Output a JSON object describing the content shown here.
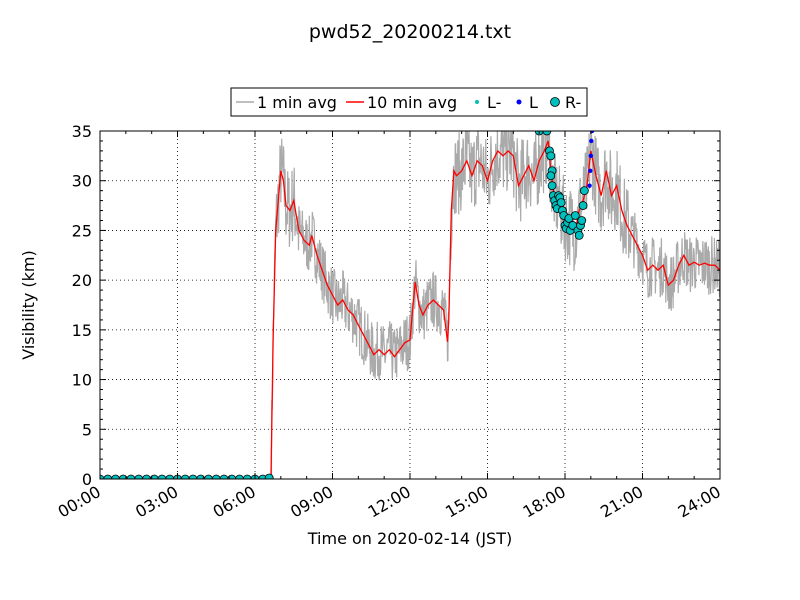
{
  "chart_data": {
    "type": "line",
    "title": "pwd52_20200214.txt",
    "xlabel": "Time on 2020-02-14 (JST)",
    "ylabel": "Visibility (km)",
    "xlim": [
      0,
      24
    ],
    "ylim": [
      0,
      35
    ],
    "x_ticks": [
      "00:00",
      "03:00",
      "06:00",
      "09:00",
      "12:00",
      "15:00",
      "18:00",
      "21:00",
      "24:00"
    ],
    "y_ticks": [
      0,
      5,
      10,
      15,
      20,
      25,
      30,
      35
    ],
    "grid": true,
    "legend_position": "top-center",
    "legend": [
      "1 min avg",
      "10 min avg",
      "L-",
      "L",
      "R-"
    ],
    "colors": {
      "one_min": "#aaaaaa",
      "ten_min": "#ff0000",
      "l_minus": "#00bfbf",
      "l": "#0000ff",
      "r_minus": "#00bfbf"
    },
    "series": [
      {
        "name": "10 min avg",
        "points": [
          [
            0,
            0
          ],
          [
            6.5,
            0
          ],
          [
            6.62,
            0.3
          ],
          [
            6.7,
            14
          ],
          [
            6.8,
            25
          ],
          [
            6.9,
            28
          ],
          [
            7.0,
            31
          ],
          [
            7.1,
            30
          ],
          [
            7.2,
            27.5
          ],
          [
            7.35,
            27
          ],
          [
            7.5,
            28
          ],
          [
            7.6,
            26.5
          ],
          [
            7.7,
            25
          ],
          [
            7.9,
            24
          ],
          [
            8.1,
            23.5
          ],
          [
            8.2,
            24.5
          ],
          [
            8.4,
            22.5
          ],
          [
            8.6,
            21
          ],
          [
            8.8,
            19.5
          ],
          [
            9.0,
            18.5
          ],
          [
            9.2,
            17.5
          ],
          [
            9.4,
            18
          ],
          [
            9.6,
            17
          ],
          [
            9.8,
            16.5
          ],
          [
            10.0,
            15.5
          ],
          [
            10.2,
            14.5
          ],
          [
            10.4,
            13.5
          ],
          [
            10.6,
            12.5
          ],
          [
            10.8,
            13
          ],
          [
            11.0,
            12.5
          ],
          [
            11.2,
            13
          ],
          [
            11.4,
            12.3
          ],
          [
            11.6,
            13
          ],
          [
            11.8,
            13.7
          ],
          [
            12.0,
            14
          ],
          [
            12.1,
            17
          ],
          [
            12.2,
            19.8
          ],
          [
            12.35,
            17.5
          ],
          [
            12.5,
            16.5
          ],
          [
            12.7,
            17.5
          ],
          [
            12.9,
            18
          ],
          [
            13.1,
            17.5
          ],
          [
            13.3,
            17
          ],
          [
            13.45,
            13.8
          ],
          [
            13.5,
            16
          ],
          [
            13.6,
            27
          ],
          [
            13.7,
            31
          ],
          [
            13.8,
            30.5
          ],
          [
            14.0,
            31
          ],
          [
            14.2,
            32
          ],
          [
            14.4,
            30.5
          ],
          [
            14.6,
            32
          ],
          [
            14.8,
            31.5
          ],
          [
            15.0,
            30
          ],
          [
            15.2,
            32
          ],
          [
            15.4,
            33
          ],
          [
            15.6,
            32.5
          ],
          [
            15.8,
            33
          ],
          [
            16.0,
            32.5
          ],
          [
            16.2,
            29.5
          ],
          [
            16.4,
            30.5
          ],
          [
            16.6,
            31.5
          ],
          [
            16.8,
            30
          ],
          [
            17.0,
            32
          ],
          [
            17.2,
            33
          ],
          [
            17.35,
            34
          ],
          [
            17.45,
            31
          ],
          [
            17.55,
            29
          ],
          [
            17.7,
            28
          ],
          [
            17.85,
            27
          ],
          [
            18.0,
            26
          ],
          [
            18.2,
            25.5
          ],
          [
            18.4,
            25
          ],
          [
            18.55,
            27
          ],
          [
            18.7,
            28
          ],
          [
            18.85,
            29.5
          ],
          [
            19.0,
            33
          ],
          [
            19.2,
            30.5
          ],
          [
            19.4,
            28.5
          ],
          [
            19.6,
            31
          ],
          [
            19.8,
            28.5
          ],
          [
            20.0,
            29.5
          ],
          [
            20.2,
            27
          ],
          [
            20.4,
            25.5
          ],
          [
            20.6,
            24.5
          ],
          [
            20.8,
            23.5
          ],
          [
            21.0,
            22.5
          ],
          [
            21.2,
            21
          ],
          [
            21.4,
            21.5
          ],
          [
            21.6,
            21
          ],
          [
            21.8,
            21.5
          ],
          [
            22.0,
            19.5
          ],
          [
            22.2,
            20
          ],
          [
            22.4,
            21.5
          ],
          [
            22.6,
            22.5
          ],
          [
            22.8,
            21.5
          ],
          [
            23.0,
            21.8
          ],
          [
            23.2,
            21.5
          ],
          [
            23.4,
            21.7
          ],
          [
            23.6,
            21.5
          ],
          [
            23.8,
            21.5
          ],
          [
            24.0,
            21
          ]
        ]
      },
      {
        "name": "1 min avg",
        "derived_from": "10 min avg",
        "noise_amplitude_km": 3
      },
      {
        "name": "L-",
        "points": []
      },
      {
        "name": "L",
        "points": [
          [
            18.95,
            29.5
          ],
          [
            18.98,
            31
          ],
          [
            19.0,
            32.5
          ],
          [
            19.02,
            34
          ],
          [
            19.05,
            35
          ]
        ]
      },
      {
        "name": "R-",
        "points": [
          [
            0.0,
            0
          ],
          [
            0.3,
            0
          ],
          [
            0.6,
            0
          ],
          [
            0.9,
            0
          ],
          [
            1.2,
            0
          ],
          [
            1.5,
            0
          ],
          [
            1.8,
            0
          ],
          [
            2.1,
            0
          ],
          [
            2.4,
            0
          ],
          [
            2.7,
            0
          ],
          [
            3.0,
            0
          ],
          [
            3.3,
            0
          ],
          [
            3.6,
            0
          ],
          [
            3.9,
            0
          ],
          [
            4.2,
            0
          ],
          [
            4.5,
            0
          ],
          [
            4.8,
            0
          ],
          [
            5.1,
            0
          ],
          [
            5.4,
            0
          ],
          [
            5.7,
            0
          ],
          [
            6.0,
            0
          ],
          [
            6.3,
            0
          ],
          [
            6.55,
            0.1
          ],
          [
            17.0,
            35
          ],
          [
            17.3,
            35
          ],
          [
            17.4,
            33
          ],
          [
            17.45,
            32.5
          ],
          [
            17.5,
            31
          ],
          [
            17.45,
            30.5
          ],
          [
            17.5,
            29.5
          ],
          [
            17.55,
            28.5
          ],
          [
            17.6,
            28
          ],
          [
            17.65,
            27.5
          ],
          [
            17.7,
            27.2
          ],
          [
            17.75,
            28.5
          ],
          [
            17.8,
            28.3
          ],
          [
            17.85,
            27.8
          ],
          [
            17.9,
            27
          ],
          [
            17.95,
            26.5
          ],
          [
            18.0,
            25.5
          ],
          [
            18.05,
            25.2
          ],
          [
            18.1,
            25.8
          ],
          [
            18.15,
            26.2
          ],
          [
            18.2,
            25
          ],
          [
            18.3,
            25.5
          ],
          [
            18.4,
            26.5
          ],
          [
            18.5,
            25
          ],
          [
            18.55,
            24.5
          ],
          [
            18.6,
            25.5
          ],
          [
            18.65,
            26
          ],
          [
            18.7,
            27.5
          ],
          [
            18.75,
            29
          ]
        ]
      }
    ]
  }
}
